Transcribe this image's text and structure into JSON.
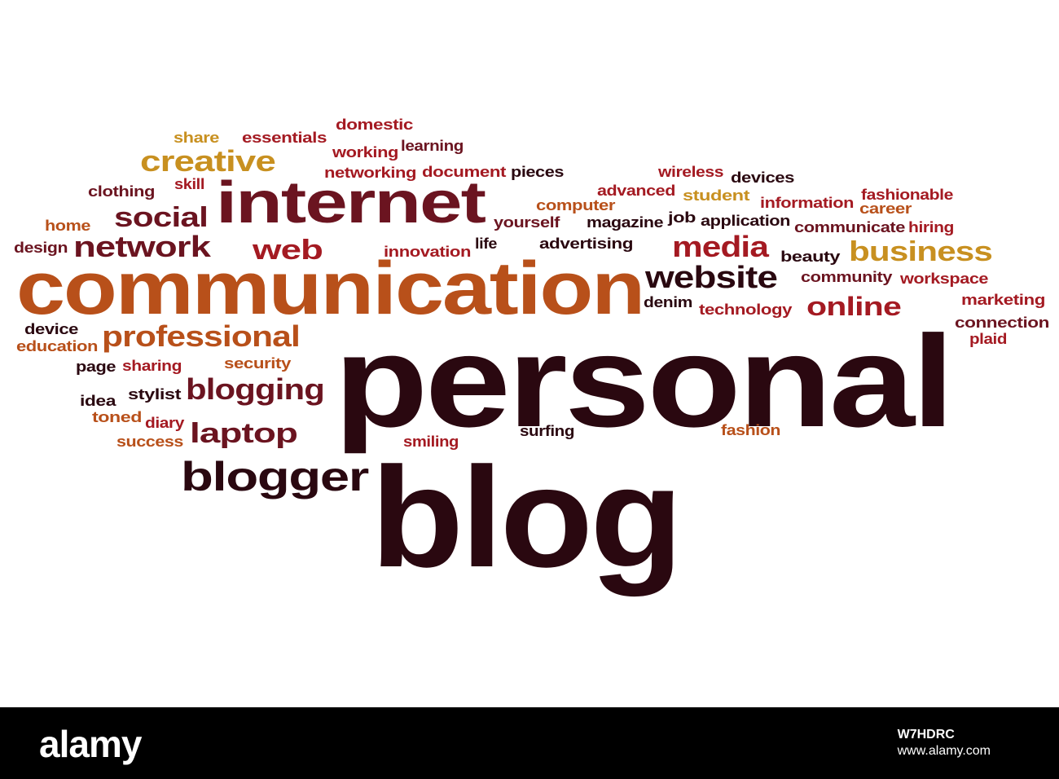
{
  "colors": {
    "dark": "#2a0810",
    "maroon": "#6b1420",
    "red": "#a41a22",
    "orange": "#b8501a",
    "gold": "#c89020",
    "brown": "#7a3018"
  },
  "words": [
    {
      "text": "personal",
      "color": "dark"
    },
    {
      "text": "blog",
      "color": "dark"
    },
    {
      "text": "communication",
      "color": "orange"
    },
    {
      "text": "internet",
      "color": "maroon"
    },
    {
      "text": "network",
      "color": "maroon"
    },
    {
      "text": "professional",
      "color": "orange"
    },
    {
      "text": "business",
      "color": "gold"
    },
    {
      "text": "blogger",
      "color": "dark"
    },
    {
      "text": "blogging",
      "color": "maroon"
    },
    {
      "text": "website",
      "color": "dark"
    },
    {
      "text": "creative",
      "color": "gold"
    },
    {
      "text": "social",
      "color": "maroon"
    },
    {
      "text": "media",
      "color": "red"
    },
    {
      "text": "web",
      "color": "red"
    },
    {
      "text": "online",
      "color": "red"
    },
    {
      "text": "laptop",
      "color": "maroon"
    },
    {
      "text": "share",
      "color": "gold"
    },
    {
      "text": "essentials",
      "color": "red"
    },
    {
      "text": "domestic",
      "color": "red"
    },
    {
      "text": "working",
      "color": "red"
    },
    {
      "text": "learning",
      "color": "maroon"
    },
    {
      "text": "networking",
      "color": "red"
    },
    {
      "text": "document",
      "color": "red"
    },
    {
      "text": "pieces",
      "color": "dark"
    },
    {
      "text": "wireless",
      "color": "red"
    },
    {
      "text": "devices",
      "color": "dark"
    },
    {
      "text": "clothing",
      "color": "maroon"
    },
    {
      "text": "skill",
      "color": "red"
    },
    {
      "text": "advanced",
      "color": "red"
    },
    {
      "text": "student",
      "color": "gold"
    },
    {
      "text": "information",
      "color": "red"
    },
    {
      "text": "fashionable",
      "color": "red"
    },
    {
      "text": "computer",
      "color": "orange"
    },
    {
      "text": "career",
      "color": "orange"
    },
    {
      "text": "home",
      "color": "orange"
    },
    {
      "text": "yourself",
      "color": "maroon"
    },
    {
      "text": "magazine",
      "color": "dark"
    },
    {
      "text": "job",
      "color": "dark"
    },
    {
      "text": "application",
      "color": "dark"
    },
    {
      "text": "communicate",
      "color": "maroon"
    },
    {
      "text": "hiring",
      "color": "red"
    },
    {
      "text": "design",
      "color": "maroon"
    },
    {
      "text": "life",
      "color": "dark"
    },
    {
      "text": "advertising",
      "color": "dark"
    },
    {
      "text": "innovation",
      "color": "red"
    },
    {
      "text": "beauty",
      "color": "dark"
    },
    {
      "text": "community",
      "color": "maroon"
    },
    {
      "text": "workspace",
      "color": "red"
    },
    {
      "text": "marketing",
      "color": "red"
    },
    {
      "text": "denim",
      "color": "dark"
    },
    {
      "text": "technology",
      "color": "red"
    },
    {
      "text": "connection",
      "color": "maroon"
    },
    {
      "text": "plaid",
      "color": "red"
    },
    {
      "text": "device",
      "color": "dark"
    },
    {
      "text": "education",
      "color": "orange"
    },
    {
      "text": "page",
      "color": "dark"
    },
    {
      "text": "sharing",
      "color": "red"
    },
    {
      "text": "security",
      "color": "orange"
    },
    {
      "text": "idea",
      "color": "dark"
    },
    {
      "text": "stylist",
      "color": "dark"
    },
    {
      "text": "toned",
      "color": "orange"
    },
    {
      "text": "diary",
      "color": "red"
    },
    {
      "text": "success",
      "color": "orange"
    },
    {
      "text": "smiling",
      "color": "red"
    },
    {
      "text": "surfing",
      "color": "dark"
    },
    {
      "text": "fashion",
      "color": "orange"
    }
  ],
  "footer": {
    "brand": "alamy",
    "image_id": "W7HDRC",
    "site": "www.alamy.com"
  }
}
